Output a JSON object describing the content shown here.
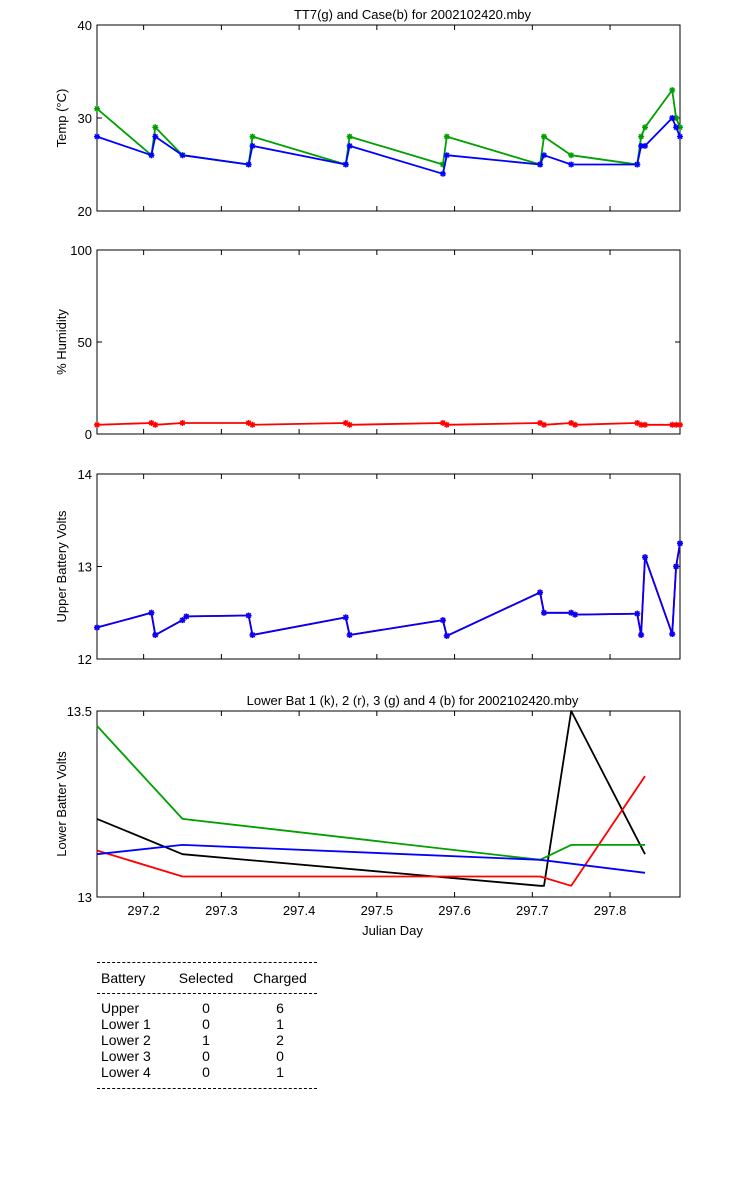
{
  "chart_data": [
    {
      "type": "line",
      "title": "TT7(g) and Case(b) for 2002102420.mby",
      "xlabel": "",
      "ylabel": "Temp  (°C)",
      "xlim": [
        297.14,
        297.89
      ],
      "ylim": [
        20,
        40
      ],
      "yticks": [
        20,
        30,
        40
      ],
      "series": [
        {
          "color": "#00a000",
          "marker": "*",
          "points": [
            [
              297.14,
              31
            ],
            [
              297.21,
              26
            ],
            [
              297.215,
              29
            ],
            [
              297.25,
              26
            ],
            [
              297.335,
              25
            ],
            [
              297.34,
              28
            ],
            [
              297.46,
              25
            ],
            [
              297.465,
              28
            ],
            [
              297.585,
              25
            ],
            [
              297.59,
              28
            ],
            [
              297.71,
              25
            ],
            [
              297.715,
              28
            ],
            [
              297.75,
              26
            ],
            [
              297.835,
              25
            ],
            [
              297.84,
              28
            ],
            [
              297.845,
              29
            ],
            [
              297.88,
              33
            ],
            [
              297.885,
              30
            ],
            [
              297.89,
              29
            ]
          ]
        },
        {
          "color": "#0000ff",
          "marker": "*",
          "points": [
            [
              297.14,
              28
            ],
            [
              297.21,
              26
            ],
            [
              297.215,
              28
            ],
            [
              297.25,
              26
            ],
            [
              297.335,
              25
            ],
            [
              297.34,
              27
            ],
            [
              297.46,
              25
            ],
            [
              297.465,
              27
            ],
            [
              297.585,
              24
            ],
            [
              297.59,
              26
            ],
            [
              297.71,
              25
            ],
            [
              297.715,
              26
            ],
            [
              297.75,
              25
            ],
            [
              297.835,
              25
            ],
            [
              297.84,
              27
            ],
            [
              297.845,
              27
            ],
            [
              297.88,
              30
            ],
            [
              297.885,
              29
            ],
            [
              297.89,
              28
            ]
          ]
        }
      ]
    },
    {
      "type": "line",
      "title": "",
      "xlabel": "",
      "ylabel": "% Humidity",
      "xlim": [
        297.14,
        297.89
      ],
      "ylim": [
        0,
        100
      ],
      "yticks": [
        0,
        50,
        100
      ],
      "series": [
        {
          "color": "#ff0000",
          "marker": "*",
          "points": [
            [
              297.14,
              5
            ],
            [
              297.21,
              6
            ],
            [
              297.215,
              5
            ],
            [
              297.25,
              6
            ],
            [
              297.335,
              6
            ],
            [
              297.34,
              5
            ],
            [
              297.46,
              6
            ],
            [
              297.465,
              5
            ],
            [
              297.585,
              6
            ],
            [
              297.59,
              5
            ],
            [
              297.71,
              6
            ],
            [
              297.715,
              5
            ],
            [
              297.75,
              6
            ],
            [
              297.755,
              5
            ],
            [
              297.835,
              6
            ],
            [
              297.84,
              5
            ],
            [
              297.845,
              5
            ],
            [
              297.88,
              5
            ],
            [
              297.885,
              5
            ],
            [
              297.89,
              5
            ]
          ]
        }
      ]
    },
    {
      "type": "line",
      "title": "",
      "xlabel": "",
      "ylabel": "Upper Battery Volts",
      "xlim": [
        297.14,
        297.89
      ],
      "ylim": [
        12,
        14
      ],
      "yticks": [
        12,
        13,
        14
      ],
      "series": [
        {
          "color": "#ff0000",
          "marker": "*",
          "points": [
            [
              297.14,
              12.34
            ],
            [
              297.21,
              12.5
            ],
            [
              297.215,
              12.26
            ],
            [
              297.25,
              12.42
            ],
            [
              297.255,
              12.46
            ],
            [
              297.335,
              12.47
            ],
            [
              297.34,
              12.26
            ],
            [
              297.46,
              12.45
            ],
            [
              297.465,
              12.26
            ],
            [
              297.585,
              12.42
            ],
            [
              297.59,
              12.25
            ],
            [
              297.71,
              12.72
            ],
            [
              297.715,
              12.5
            ],
            [
              297.75,
              12.5
            ],
            [
              297.755,
              12.48
            ],
            [
              297.835,
              12.49
            ],
            [
              297.84,
              12.26
            ],
            [
              297.845,
              13.1
            ],
            [
              297.88,
              12.27
            ],
            [
              297.885,
              13.0
            ],
            [
              297.89,
              13.25
            ]
          ]
        },
        {
          "color": "#0000ff",
          "marker": "*",
          "points": [
            [
              297.14,
              12.34
            ],
            [
              297.21,
              12.5
            ],
            [
              297.215,
              12.26
            ],
            [
              297.25,
              12.42
            ],
            [
              297.255,
              12.46
            ],
            [
              297.335,
              12.47
            ],
            [
              297.34,
              12.26
            ],
            [
              297.46,
              12.45
            ],
            [
              297.465,
              12.26
            ],
            [
              297.585,
              12.42
            ],
            [
              297.59,
              12.25
            ],
            [
              297.71,
              12.72
            ],
            [
              297.715,
              12.5
            ],
            [
              297.75,
              12.5
            ],
            [
              297.755,
              12.48
            ],
            [
              297.835,
              12.49
            ],
            [
              297.84,
              12.26
            ],
            [
              297.845,
              13.1
            ],
            [
              297.88,
              12.27
            ],
            [
              297.885,
              13.0
            ],
            [
              297.89,
              13.25
            ]
          ]
        }
      ]
    },
    {
      "type": "line",
      "title": "Lower Bat 1 (k), 2 (r), 3 (g) and 4 (b) for 2002102420.mby",
      "xlabel": "Julian Day",
      "ylabel": "Lower Batter Volts",
      "xlim": [
        297.14,
        297.89
      ],
      "ylim": [
        13,
        13.5
      ],
      "yticks": [
        13,
        13.5
      ],
      "xticks": [
        297.2,
        297.3,
        297.4,
        297.5,
        297.6,
        297.7,
        297.8
      ],
      "series": [
        {
          "color": "#000000",
          "marker": "",
          "points": [
            [
              297.14,
              13.21
            ],
            [
              297.25,
              13.115
            ],
            [
              297.71,
              13.03
            ],
            [
              297.715,
              13.03
            ],
            [
              297.75,
              13.5
            ],
            [
              297.845,
              13.115
            ]
          ]
        },
        {
          "color": "#ff0000",
          "marker": "",
          "points": [
            [
              297.14,
              13.125
            ],
            [
              297.25,
              13.055
            ],
            [
              297.71,
              13.055
            ],
            [
              297.75,
              13.03
            ],
            [
              297.845,
              13.325
            ]
          ]
        },
        {
          "color": "#00a000",
          "marker": "",
          "points": [
            [
              297.14,
              13.46
            ],
            [
              297.25,
              13.21
            ],
            [
              297.71,
              13.1
            ],
            [
              297.75,
              13.14
            ],
            [
              297.845,
              13.14
            ]
          ]
        },
        {
          "color": "#0000ff",
          "marker": "",
          "points": [
            [
              297.14,
              13.115
            ],
            [
              297.25,
              13.14
            ],
            [
              297.71,
              13.1
            ],
            [
              297.845,
              13.065
            ]
          ]
        }
      ]
    }
  ],
  "summary": {
    "headers": [
      "Battery",
      "Selected",
      "Charged"
    ],
    "rows": [
      [
        "Upper",
        "0",
        "6"
      ],
      [
        "Lower 1",
        "0",
        "1"
      ],
      [
        "Lower 2",
        "1",
        "2"
      ],
      [
        "Lower 3",
        "0",
        "0"
      ],
      [
        "Lower 4",
        "0",
        "1"
      ]
    ]
  }
}
